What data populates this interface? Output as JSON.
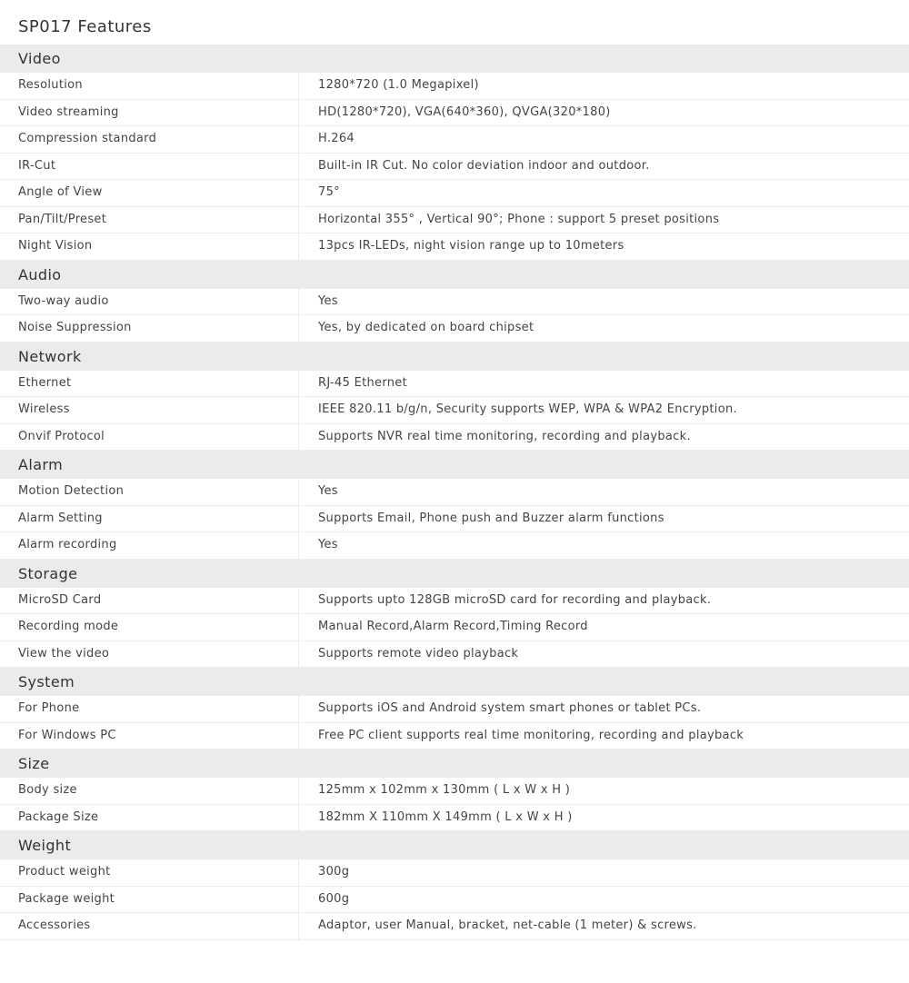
{
  "title": "SP017 Features",
  "sections": [
    {
      "name": "Video",
      "rows": [
        [
          "Resolution",
          "1280*720 (1.0 Megapixel)"
        ],
        [
          "Video streaming",
          "HD(1280*720), VGA(640*360), QVGA(320*180)"
        ],
        [
          "Compression standard",
          "H.264"
        ],
        [
          "IR-Cut",
          "Built-in IR Cut. No color deviation indoor and outdoor."
        ],
        [
          "Angle of View",
          "75°"
        ],
        [
          "Pan/Tilt/Preset",
          "Horizontal 355° ,  Vertical 90°; Phone : support 5 preset positions"
        ],
        [
          "Night Vision",
          "13pcs IR-LEDs, night vision range up to 10meters"
        ]
      ]
    },
    {
      "name": "Audio",
      "rows": [
        [
          "Two-way audio",
          "Yes"
        ],
        [
          "Noise Suppression",
          "Yes, by dedicated on board chipset"
        ]
      ]
    },
    {
      "name": "Network",
      "rows": [
        [
          "Ethernet",
          "RJ-45 Ethernet"
        ],
        [
          "Wireless",
          "IEEE 820.11 b/g/n, Security supports WEP, WPA & WPA2 Encryption."
        ],
        [
          "Onvif Protocol",
          "Supports NVR real time monitoring, recording and playback."
        ]
      ]
    },
    {
      "name": "Alarm",
      "rows": [
        [
          "Motion Detection",
          "Yes"
        ],
        [
          "Alarm Setting",
          "Supports Email, Phone push and Buzzer alarm functions"
        ],
        [
          "Alarm recording",
          "Yes"
        ]
      ]
    },
    {
      "name": "Storage",
      "rows": [
        [
          "MicroSD Card",
          "Supports upto 128GB microSD card for recording and playback."
        ],
        [
          "Recording mode",
          "Manual Record,Alarm Record,Timing Record"
        ],
        [
          "View the video",
          "Supports remote video playback"
        ]
      ]
    },
    {
      "name": "System",
      "rows": [
        [
          "For Phone",
          "Supports iOS and Android system smart phones or tablet PCs."
        ],
        [
          "For Windows PC",
          "Free PC client supports real time monitoring, recording and playback"
        ]
      ]
    },
    {
      "name": "Size",
      "rows": [
        [
          "Body size",
          "125mm x 102mm x 130mm    ( L x W x H )"
        ],
        [
          "Package Size",
          "182mm X 110mm X 149mm   ( L x W x H )"
        ]
      ]
    },
    {
      "name": "Weight",
      "rows": [
        [
          "Product weight",
          "300g"
        ],
        [
          "Package weight",
          "600g"
        ],
        [
          "Accessories",
          "Adaptor, user Manual, bracket, net-cable (1 meter) & screws."
        ]
      ]
    }
  ]
}
